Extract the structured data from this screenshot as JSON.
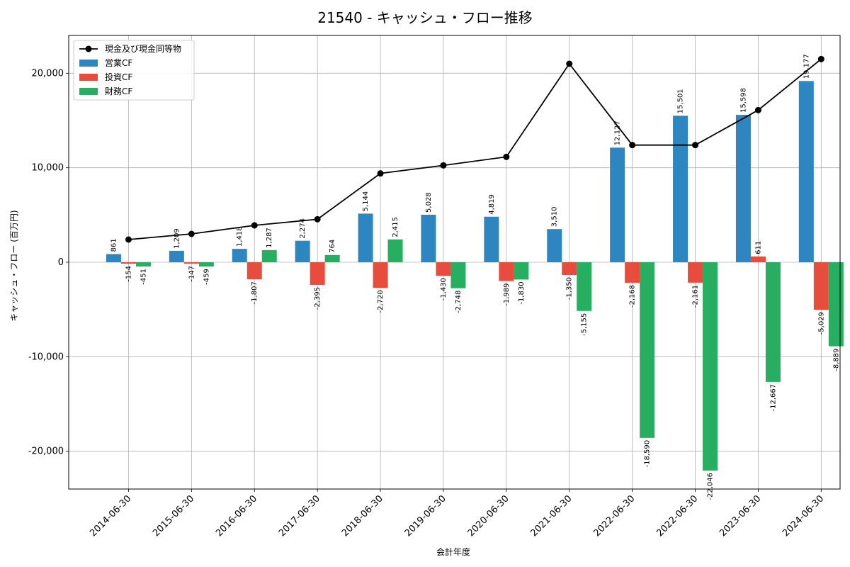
{
  "chart_data": {
    "type": "bar",
    "title": "21540 - キャッシュ・フロー推移",
    "xlabel": "会計年度",
    "ylabel": "キャッシュ・フロー (百万円)",
    "categories": [
      "2014-06-30",
      "2015-06-30",
      "2016-06-30",
      "2017-06-30",
      "2018-06-30",
      "2019-06-30",
      "2020-06-30",
      "2021-06-30",
      "2022-06-30",
      "2022-06-30",
      "2023-06-30",
      "2024-06-30"
    ],
    "ylim": [
      -24000,
      24000
    ],
    "yticks": [
      -20000,
      -10000,
      0,
      10000,
      20000
    ],
    "ytick_labels": [
      "-20,000",
      "-10,000",
      "0",
      "10,000",
      "20,000"
    ],
    "grid": true,
    "legend_position": "top-left",
    "line_series": {
      "name": "現金及び現金同等物",
      "color": "#000000",
      "values": [
        2400,
        3000,
        3900,
        4550,
        9400,
        10250,
        11150,
        21000,
        12400,
        12400,
        16100,
        21500
      ]
    },
    "series": [
      {
        "name": "営業CF",
        "color": "#2e86c1",
        "values": [
          861,
          1209,
          1418,
          2274,
          5144,
          5028,
          4819,
          3510,
          12127,
          15501,
          15598,
          19177
        ],
        "labels": [
          "861",
          "1,209",
          "1,418",
          "2,274",
          "5,144",
          "5,028",
          "4,819",
          "3,510",
          "12,127",
          "15,501",
          "15,598",
          "19,177"
        ]
      },
      {
        "name": "投資CF",
        "color": "#e74c3c",
        "values": [
          -154,
          -147,
          -1807,
          -2395,
          -2720,
          -1430,
          -1989,
          -1350,
          -2168,
          -2161,
          611,
          -5029
        ],
        "labels": [
          "-154",
          "-147",
          "-1,807",
          "-2,395",
          "-2,720",
          "-1,430",
          "-1,989",
          "-1,350",
          "-2,168",
          "-2,161",
          "611",
          "-5,029"
        ]
      },
      {
        "name": "財務CF",
        "color": "#27ae60",
        "values": [
          -451,
          -459,
          1287,
          764,
          2415,
          -2748,
          -1830,
          -5155,
          -18590,
          -22046,
          -12667,
          -8889
        ],
        "labels": [
          "-451",
          "-459",
          "1,287",
          "764",
          "2,415",
          "-2,748",
          "-1,830",
          "-5,155",
          "-18,590",
          "-22,046",
          "-12,667",
          "-8,889"
        ]
      }
    ]
  }
}
